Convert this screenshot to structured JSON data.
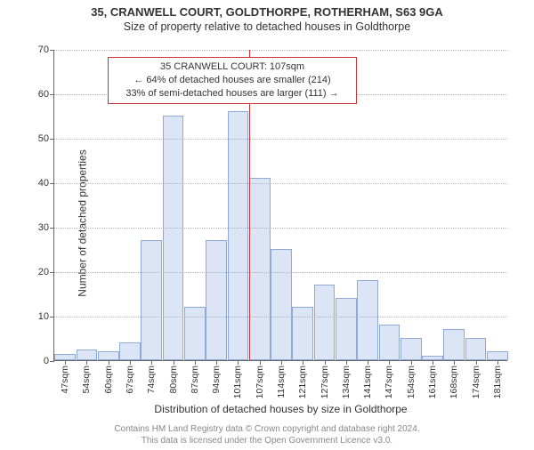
{
  "title": "35, CRANWELL COURT, GOLDTHORPE, ROTHERHAM, S63 9GA",
  "subtitle": "Size of property relative to detached houses in Goldthorpe",
  "chart": {
    "type": "histogram",
    "ylabel": "Number of detached properties",
    "xlabel": "Distribution of detached houses by size in Goldthorpe",
    "ylim": [
      0,
      70
    ],
    "yticks": [
      0,
      10,
      20,
      30,
      40,
      50,
      60,
      70
    ],
    "xticks": [
      "47sqm",
      "54sqm",
      "60sqm",
      "67sqm",
      "74sqm",
      "80sqm",
      "87sqm",
      "94sqm",
      "101sqm",
      "107sqm",
      "114sqm",
      "121sqm",
      "127sqm",
      "134sqm",
      "141sqm",
      "147sqm",
      "154sqm",
      "161sqm",
      "168sqm",
      "174sqm",
      "181sqm"
    ],
    "values": [
      1.5,
      2.5,
      2,
      4,
      27,
      55,
      12,
      27,
      56,
      41,
      25,
      12,
      17,
      14,
      18,
      8,
      5,
      1,
      7,
      5,
      2
    ],
    "bar_fill": "#dbe5f6",
    "bar_stroke": "#8faad4",
    "grid_color": "#b0b0b0",
    "axis_color": "#666666",
    "background": "#ffffff",
    "bar_width_ratio": 0.98,
    "marker": {
      "index": 9,
      "color": "#cc3030"
    },
    "callout": {
      "lines": [
        "35 CRANWELL COURT: 107sqm",
        "← 64% of detached houses are smaller (214)",
        "33% of semi-detached houses are larger (111) →"
      ],
      "border_color": "#cc3030"
    }
  },
  "footer": {
    "line1": "Contains HM Land Registry data © Crown copyright and database right 2024.",
    "line2": "This data is licensed under the Open Government Licence v3.0."
  }
}
